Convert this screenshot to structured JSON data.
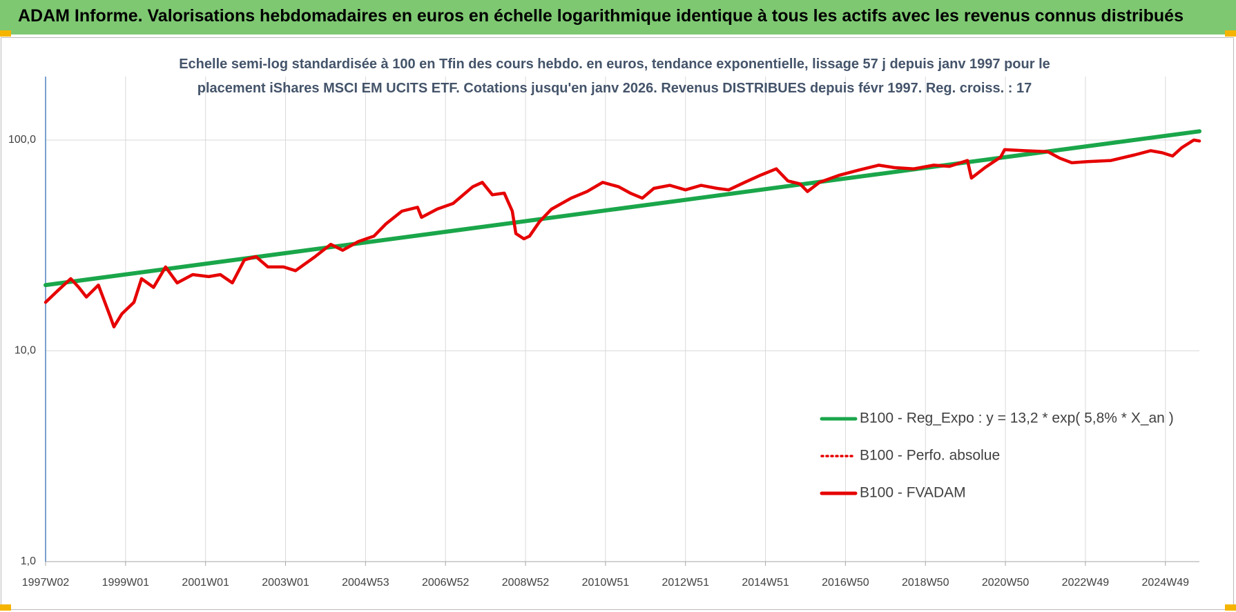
{
  "chart_data": {
    "type": "line",
    "title": "ADAM Informe. Valorisations hebdomadaires en euros en échelle logarithmique identique à tous les actifs avec les revenus connus distribués",
    "subtitle": "Echelle semi-log standardisée à 100 en Tfin des cours hebdo. en euros, tendance exponentielle, lissage 57 j depuis janv 1997 pour le placement iShares MSCI EM UCITS ETF. Cotations jusqu'en janv 2026. Revenus DISTRIBUES depuis févr 1997. Reg. croiss. : 17",
    "yscale": "log",
    "ylim": [
      1,
      200
    ],
    "yticks": [
      {
        "value": 1,
        "label": "1,0"
      },
      {
        "value": 10,
        "label": "10,0"
      },
      {
        "value": 100,
        "label": "100,0"
      }
    ],
    "xlim": [
      1997.0,
      2025.85
    ],
    "xticks": [
      {
        "value": 1997,
        "label": "1997W02"
      },
      {
        "value": 1999,
        "label": "1999W01"
      },
      {
        "value": 2001,
        "label": "2001W01"
      },
      {
        "value": 2003,
        "label": "2003W01"
      },
      {
        "value": 2005,
        "label": "2004W53"
      },
      {
        "value": 2007,
        "label": "2006W52"
      },
      {
        "value": 2009,
        "label": "2008W52"
      },
      {
        "value": 2011,
        "label": "2010W51"
      },
      {
        "value": 2013,
        "label": "2012W51"
      },
      {
        "value": 2015,
        "label": "2014W51"
      },
      {
        "value": 2017,
        "label": "2016W50"
      },
      {
        "value": 2019,
        "label": "2018W50"
      },
      {
        "value": 2021,
        "label": "2020W50"
      },
      {
        "value": 2023,
        "label": "2022W49"
      },
      {
        "value": 2025,
        "label": "2024W49"
      }
    ],
    "grid": true,
    "legend": "lower-right",
    "series": [
      {
        "name": "B100 - Reg_Expo : y = 13,2 * exp( 5,8% *  X_an )",
        "color": "#1aa64a",
        "style": "solid",
        "x": [
          1997.0,
          2025.85
        ],
        "values": [
          20.5,
          110
        ]
      },
      {
        "name": "B100 - Perfo. absolue",
        "color": "#e60000",
        "style": "dotted",
        "x": [
          1997.0,
          1997.33,
          1997.63,
          1997.83,
          1998.02,
          1998.32,
          1998.62,
          1998.71,
          1998.91,
          1999.21,
          1999.4,
          1999.7,
          2000.0,
          2000.29,
          2000.68,
          2001.08,
          2001.37,
          2001.67,
          2001.97,
          2002.26,
          2002.56,
          2002.95,
          2003.25,
          2003.74,
          2004.13,
          2004.43,
          2004.82,
          2005.21,
          2005.51,
          2005.91,
          2006.3,
          2006.4,
          2006.79,
          2007.19,
          2007.68,
          2007.92,
          2008.17,
          2008.47,
          2008.67,
          2008.76,
          2008.96,
          2009.1,
          2009.35,
          2009.65,
          2010.14,
          2010.54,
          2010.93,
          2011.33,
          2011.62,
          2011.92,
          2012.21,
          2012.61,
          2013.0,
          2013.39,
          2013.79,
          2014.08,
          2014.48,
          2014.87,
          2015.27,
          2015.56,
          2015.86,
          2016.05,
          2016.35,
          2016.84,
          2017.33,
          2017.83,
          2018.22,
          2018.71,
          2019.21,
          2019.6,
          2020.05,
          2020.15,
          2020.49,
          2020.88,
          2020.98,
          2021.47,
          2022.06,
          2022.36,
          2022.66,
          2023.05,
          2023.64,
          2024.23,
          2024.63,
          2024.92,
          2025.18,
          2025.41,
          2025.71,
          2025.85
        ],
        "values": [
          17,
          19.5,
          22,
          20,
          18,
          20.5,
          14.5,
          13,
          15,
          17,
          22,
          20,
          25,
          21,
          23,
          22.5,
          23,
          21,
          27,
          28,
          25,
          25,
          24,
          28,
          32,
          30,
          33,
          35,
          40,
          46,
          48,
          43,
          47,
          50,
          60,
          63,
          55,
          56,
          46,
          36,
          34,
          35,
          41,
          47,
          53,
          57,
          63,
          60,
          56,
          53,
          59,
          61,
          58,
          61,
          59,
          58,
          63,
          68,
          73,
          64,
          62,
          57,
          63,
          68,
          72,
          76,
          74,
          73,
          76,
          75,
          80,
          66,
          74,
          83,
          90,
          89,
          88,
          82,
          78,
          79,
          80,
          85,
          89,
          87,
          84,
          92,
          100,
          99
        ]
      },
      {
        "name": "B100 - FVADAM",
        "color": "#e60000",
        "style": "solid",
        "x": [
          1997.0,
          1997.33,
          1997.63,
          1997.83,
          1998.02,
          1998.32,
          1998.62,
          1998.71,
          1998.91,
          1999.21,
          1999.4,
          1999.7,
          2000.0,
          2000.29,
          2000.68,
          2001.08,
          2001.37,
          2001.67,
          2001.97,
          2002.26,
          2002.56,
          2002.95,
          2003.25,
          2003.74,
          2004.13,
          2004.43,
          2004.82,
          2005.21,
          2005.51,
          2005.91,
          2006.3,
          2006.4,
          2006.79,
          2007.19,
          2007.68,
          2007.92,
          2008.17,
          2008.47,
          2008.67,
          2008.76,
          2008.96,
          2009.1,
          2009.35,
          2009.65,
          2010.14,
          2010.54,
          2010.93,
          2011.33,
          2011.62,
          2011.92,
          2012.21,
          2012.61,
          2013.0,
          2013.39,
          2013.79,
          2014.08,
          2014.48,
          2014.87,
          2015.27,
          2015.56,
          2015.86,
          2016.05,
          2016.35,
          2016.84,
          2017.33,
          2017.83,
          2018.22,
          2018.71,
          2019.21,
          2019.6,
          2020.05,
          2020.15,
          2020.49,
          2020.88,
          2020.98,
          2021.47,
          2022.06,
          2022.36,
          2022.66,
          2023.05,
          2023.64,
          2024.23,
          2024.63,
          2024.92,
          2025.18,
          2025.41,
          2025.71,
          2025.85
        ],
        "values": [
          17,
          19.5,
          22,
          20,
          18,
          20.5,
          14.5,
          13,
          15,
          17,
          22,
          20,
          25,
          21,
          23,
          22.5,
          23,
          21,
          27,
          28,
          25,
          25,
          24,
          28,
          32,
          30,
          33,
          35,
          40,
          46,
          48,
          43,
          47,
          50,
          60,
          63,
          55,
          56,
          46,
          36,
          34,
          35,
          41,
          47,
          53,
          57,
          63,
          60,
          56,
          53,
          59,
          61,
          58,
          61,
          59,
          58,
          63,
          68,
          73,
          64,
          62,
          57,
          63,
          68,
          72,
          76,
          74,
          73,
          76,
          75,
          80,
          66,
          74,
          83,
          90,
          89,
          88,
          82,
          78,
          79,
          80,
          85,
          89,
          87,
          84,
          92,
          100,
          99
        ]
      }
    ]
  }
}
